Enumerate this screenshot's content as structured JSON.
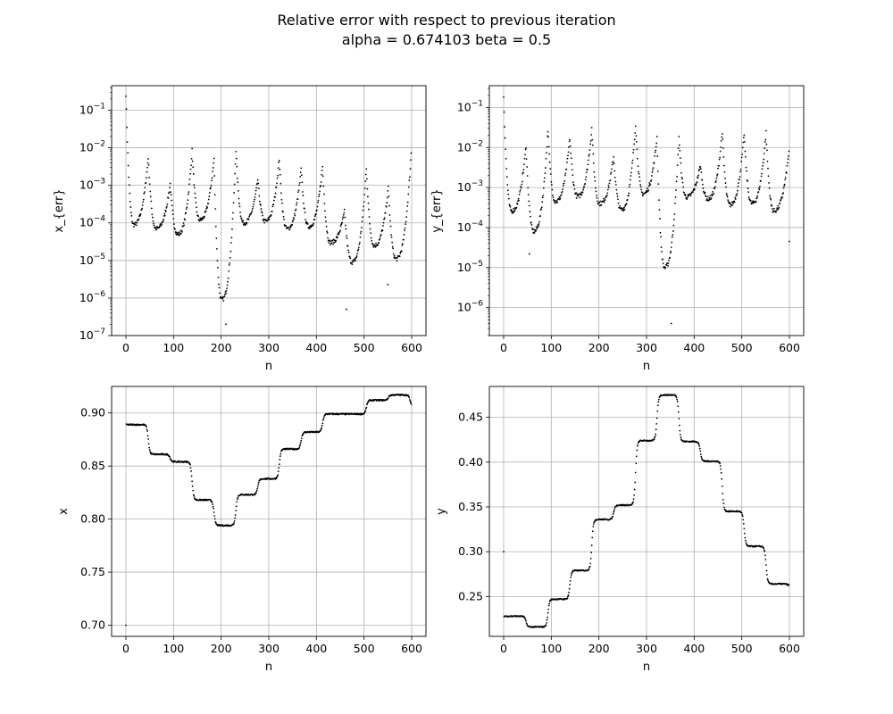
{
  "figure": {
    "title_line1": "Relative error with respect to previous iteration",
    "title_line2": "alpha = 0.674103 beta = 0.5"
  },
  "chart_data": [
    {
      "type": "scatter",
      "id": "x_err",
      "xlabel": "n",
      "ylabel": "x_{err}",
      "yscale": "log",
      "xlim": [
        -30,
        630
      ],
      "ylim": [
        1e-07,
        0.45
      ],
      "xticks": [
        0,
        100,
        200,
        300,
        400,
        500,
        600
      ],
      "yticks": [
        1e-07,
        1e-06,
        1e-05,
        0.0001,
        0.001,
        0.01,
        0.1
      ],
      "ytick_exponents": [
        "−7",
        "−6",
        "−5",
        "−4",
        "−3",
        "−2",
        "−1"
      ],
      "grid": true,
      "marker_color": "#000000",
      "n_points": 600,
      "cycle_peaks_n": [
        0,
        47,
        93,
        139,
        185,
        231,
        277,
        322,
        368,
        413,
        459,
        505,
        551,
        597
      ],
      "peak_values": [
        0.27,
        0.0055,
        0.0011,
        0.0085,
        0.0052,
        0.0085,
        0.0014,
        0.005,
        0.0027,
        0.0032,
        0.0002,
        0.003,
        0.00085,
        0.0029
      ],
      "trough_values": [
        9e-05,
        7e-05,
        5e-05,
        0.00012,
        9e-07,
        0.0001,
        0.00011,
        7e-05,
        8e-05,
        3e-05,
        9e-06,
        2.5e-05,
        1.1e-05
      ],
      "outliers": [
        [
          210,
          2e-07
        ],
        [
          463,
          5e-07
        ],
        [
          550,
          2.3e-06
        ]
      ]
    },
    {
      "type": "scatter",
      "id": "y_err",
      "xlabel": "n",
      "ylabel": "y_{err}",
      "yscale": "log",
      "xlim": [
        -30,
        630
      ],
      "ylim": [
        2e-07,
        0.35
      ],
      "xticks": [
        0,
        100,
        200,
        300,
        400,
        500,
        600
      ],
      "yticks": [
        1e-06,
        1e-05,
        0.0001,
        0.001,
        0.01,
        0.1
      ],
      "ytick_exponents": [
        "−6",
        "−5",
        "−4",
        "−3",
        "−2",
        "−1"
      ],
      "grid": true,
      "marker_color": "#000000",
      "n_points": 600,
      "cycle_peaks_n": [
        0,
        47,
        93,
        139,
        185,
        231,
        277,
        322,
        368,
        413,
        459,
        505,
        551,
        597
      ],
      "peak_values": [
        0.19,
        0.011,
        0.028,
        0.017,
        0.03,
        0.006,
        0.038,
        0.018,
        0.019,
        0.0036,
        0.025,
        0.022,
        0.024,
        0.005
      ],
      "trough_values": [
        0.00026,
        8e-05,
        0.00045,
        0.0006,
        0.0004,
        0.00028,
        0.0007,
        1e-05,
        0.00058,
        0.00052,
        0.00037,
        0.0004,
        0.00026
      ],
      "outliers": [
        [
          54,
          2.2e-05
        ],
        [
          352,
          4e-07
        ],
        [
          600,
          4.5e-05
        ]
      ]
    },
    {
      "type": "scatter",
      "id": "x",
      "xlabel": "n",
      "ylabel": "x",
      "yscale": "linear",
      "xlim": [
        -30,
        630
      ],
      "ylim": [
        0.6895,
        0.925
      ],
      "xticks": [
        0,
        100,
        200,
        300,
        400,
        500,
        600
      ],
      "yticks": [
        0.7,
        0.75,
        0.8,
        0.85,
        0.9
      ],
      "ytick_labels": [
        "0.70",
        "0.75",
        "0.80",
        "0.85",
        "0.90"
      ],
      "grid": true,
      "marker_color": "#000000",
      "n_points": 600,
      "first_point": [
        0,
        0.7
      ],
      "step_boundaries_n": [
        47,
        93,
        139,
        185,
        231,
        277,
        322,
        368,
        413,
        459,
        505,
        551,
        597
      ],
      "plateau_values": [
        0.889,
        0.861,
        0.854,
        0.818,
        0.794,
        0.823,
        0.838,
        0.866,
        0.882,
        0.899,
        0.899,
        0.912,
        0.917,
        0.905
      ]
    },
    {
      "type": "scatter",
      "id": "y",
      "xlabel": "n",
      "ylabel": "y",
      "yscale": "linear",
      "xlim": [
        -30,
        630
      ],
      "ylim": [
        0.2055,
        0.4845
      ],
      "xticks": [
        0,
        100,
        200,
        300,
        400,
        500,
        600
      ],
      "yticks": [
        0.25,
        0.3,
        0.35,
        0.4,
        0.45
      ],
      "ytick_labels": [
        "0.25",
        "0.30",
        "0.35",
        "0.40",
        "0.45"
      ],
      "grid": true,
      "marker_color": "#000000",
      "n_points": 600,
      "first_point": [
        0,
        0.3
      ],
      "step_boundaries_n": [
        47,
        93,
        139,
        185,
        231,
        277,
        322,
        368,
        413,
        459,
        505,
        551,
        597
      ],
      "plateau_values": [
        0.228,
        0.216,
        0.247,
        0.279,
        0.336,
        0.352,
        0.424,
        0.475,
        0.423,
        0.401,
        0.345,
        0.306,
        0.264,
        0.262
      ]
    }
  ]
}
